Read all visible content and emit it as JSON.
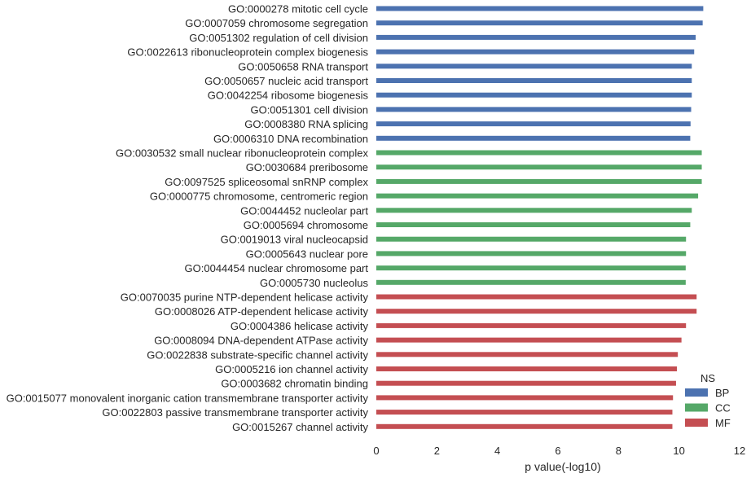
{
  "chart_data": {
    "type": "bar",
    "orientation": "horizontal",
    "xlabel": "p value(-log10)",
    "ylabel": "",
    "xlim": [
      0,
      12
    ],
    "xticks": [
      "0",
      "2",
      "4",
      "6",
      "8",
      "10",
      "12"
    ],
    "grid": false,
    "legend": {
      "title": "NS",
      "placement": "lower-right",
      "entries": [
        {
          "name": "BP",
          "color": "#4c72b0"
        },
        {
          "name": "CC",
          "color": "#55a868"
        },
        {
          "name": "MF",
          "color": "#c44e52"
        }
      ]
    },
    "bars": [
      {
        "label": "GO:0000278 mitotic cell cycle",
        "value": 10.8,
        "group": "BP"
      },
      {
        "label": "GO:0007059 chromosome segregation",
        "value": 10.78,
        "group": "BP"
      },
      {
        "label": "GO:0051302 regulation of cell division",
        "value": 10.55,
        "group": "BP"
      },
      {
        "label": "GO:0022613 ribonucleoprotein complex biogenesis",
        "value": 10.5,
        "group": "BP"
      },
      {
        "label": "GO:0050658 RNA transport",
        "value": 10.42,
        "group": "BP"
      },
      {
        "label": "GO:0050657 nucleic acid transport",
        "value": 10.42,
        "group": "BP"
      },
      {
        "label": "GO:0042254 ribosome biogenesis",
        "value": 10.42,
        "group": "BP"
      },
      {
        "label": "GO:0051301 cell division",
        "value": 10.4,
        "group": "BP"
      },
      {
        "label": "GO:0008380 RNA splicing",
        "value": 10.38,
        "group": "BP"
      },
      {
        "label": "GO:0006310 DNA recombination",
        "value": 10.37,
        "group": "BP"
      },
      {
        "label": "GO:0030532 small nuclear ribonucleoprotein complex",
        "value": 10.75,
        "group": "CC"
      },
      {
        "label": "GO:0030684 preribosome",
        "value": 10.75,
        "group": "CC"
      },
      {
        "label": "GO:0097525 spliceosomal snRNP complex",
        "value": 10.75,
        "group": "CC"
      },
      {
        "label": "GO:0000775 chromosome, centromeric region",
        "value": 10.63,
        "group": "CC"
      },
      {
        "label": "GO:0044452 nucleolar part",
        "value": 10.42,
        "group": "CC"
      },
      {
        "label": "GO:0005694 chromosome",
        "value": 10.37,
        "group": "CC"
      },
      {
        "label": "GO:0019013 viral nucleocapsid",
        "value": 10.23,
        "group": "CC"
      },
      {
        "label": "GO:0005643 nuclear pore",
        "value": 10.23,
        "group": "CC"
      },
      {
        "label": "GO:0044454 nuclear chromosome part",
        "value": 10.22,
        "group": "CC"
      },
      {
        "label": "GO:0005730 nucleolus",
        "value": 10.22,
        "group": "CC"
      },
      {
        "label": "GO:0070035 purine NTP-dependent helicase activity",
        "value": 10.58,
        "group": "MF"
      },
      {
        "label": "GO:0008026 ATP-dependent helicase activity",
        "value": 10.58,
        "group": "MF"
      },
      {
        "label": "GO:0004386 helicase activity",
        "value": 10.23,
        "group": "MF"
      },
      {
        "label": "GO:0008094 DNA-dependent ATPase activity",
        "value": 10.08,
        "group": "MF"
      },
      {
        "label": "GO:0022838 substrate-specific channel activity",
        "value": 9.96,
        "group": "MF"
      },
      {
        "label": "GO:0005216 ion channel activity",
        "value": 9.93,
        "group": "MF"
      },
      {
        "label": "GO:0003682 chromatin binding",
        "value": 9.9,
        "group": "MF"
      },
      {
        "label": "GO:0015077 monovalent inorganic cation transmembrane transporter activity",
        "value": 9.8,
        "group": "MF"
      },
      {
        "label": "GO:0022803 passive transmembrane transporter activity",
        "value": 9.78,
        "group": "MF"
      },
      {
        "label": "GO:0015267 channel activity",
        "value": 9.78,
        "group": "MF"
      }
    ]
  }
}
